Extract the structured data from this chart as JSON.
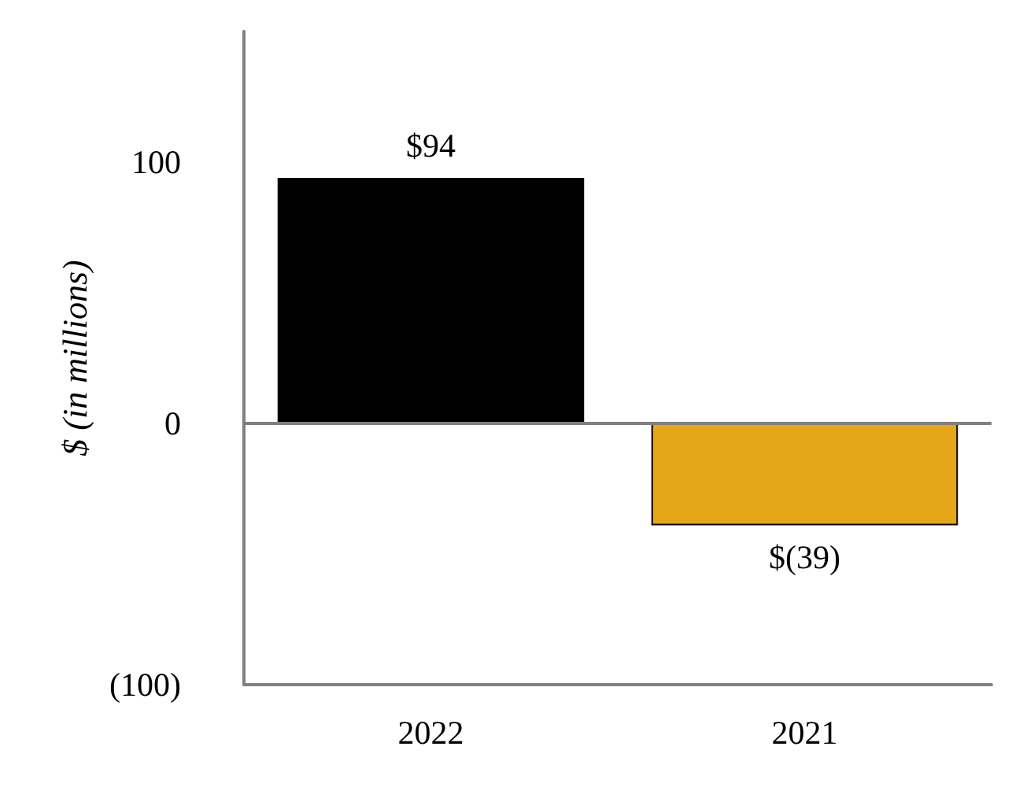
{
  "chart_data": {
    "type": "bar",
    "ylabel": "$ (in millions)",
    "categories": [
      "2022",
      "2021"
    ],
    "values": [
      94,
      -39
    ],
    "colors": [
      "#000000",
      "#e5a718"
    ],
    "value_labels": [
      "$94",
      "$(39)"
    ],
    "grid": false,
    "ylim": [
      -100,
      150
    ],
    "yticks": [
      {
        "value": -100,
        "label": "(100)"
      },
      0,
      100
    ],
    "ref_lines": [
      {
        "axis": "y",
        "value": 0,
        "color": "#808080"
      }
    ]
  }
}
